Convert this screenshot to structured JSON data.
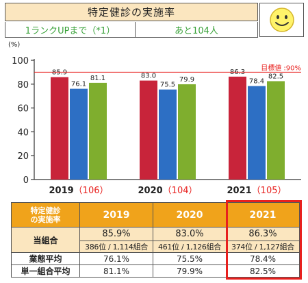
{
  "header": {
    "title": "特定健診の実施率",
    "to_rank_up": "1ランクUPまで（*1）",
    "remaining": "あと104人",
    "face_icon": "smiley-face-icon"
  },
  "chart_data": {
    "type": "bar",
    "unit_label": "(%)",
    "ylim": [
      0,
      100
    ],
    "yticks": [
      "0",
      "20",
      "40",
      "60",
      "80",
      "100"
    ],
    "categories": [
      {
        "year": "2019",
        "count": "（106）"
      },
      {
        "year": "2020",
        "count": "（104）"
      },
      {
        "year": "2021",
        "count": "（105）"
      }
    ],
    "series": [
      {
        "color": "#c8243a",
        "values": [
          85.9,
          83.0,
          86.3
        ],
        "labels": [
          "85.9",
          "83.0",
          "86.3"
        ]
      },
      {
        "color": "#2d6fc4",
        "values": [
          76.1,
          75.5,
          78.4
        ],
        "labels": [
          "76.1",
          "75.5",
          "78.4"
        ]
      },
      {
        "color": "#7fae2e",
        "values": [
          81.1,
          79.9,
          82.5
        ],
        "labels": [
          "81.1",
          "79.9",
          "82.5"
        ]
      }
    ],
    "target": {
      "value": 90,
      "label": "目標値 :90%",
      "color": "#e8201e"
    },
    "grid": false
  },
  "table": {
    "header_label": "特定健診\nの実施率",
    "years": [
      "2019",
      "2020",
      "2021"
    ],
    "rows": {
      "kumiai": {
        "label": "当組合",
        "values": [
          "85.9%",
          "83.0%",
          "86.3%"
        ],
        "ranks": [
          "386位 / 1,114組合",
          "461位 / 1,126組合",
          "374位 / 1,127組合"
        ]
      },
      "gyotai": {
        "label": "業態平均",
        "values": [
          "76.1%",
          "75.5%",
          "78.4%"
        ]
      },
      "tanitsu": {
        "label": "単一組合平均",
        "values": [
          "81.1%",
          "79.9%",
          "82.5%"
        ]
      }
    }
  },
  "colors": {
    "accent_orange": "#f0a31b",
    "cream": "#fbe6bf",
    "highlight_red": "#e8201e",
    "green_text": "#3aa23a"
  }
}
